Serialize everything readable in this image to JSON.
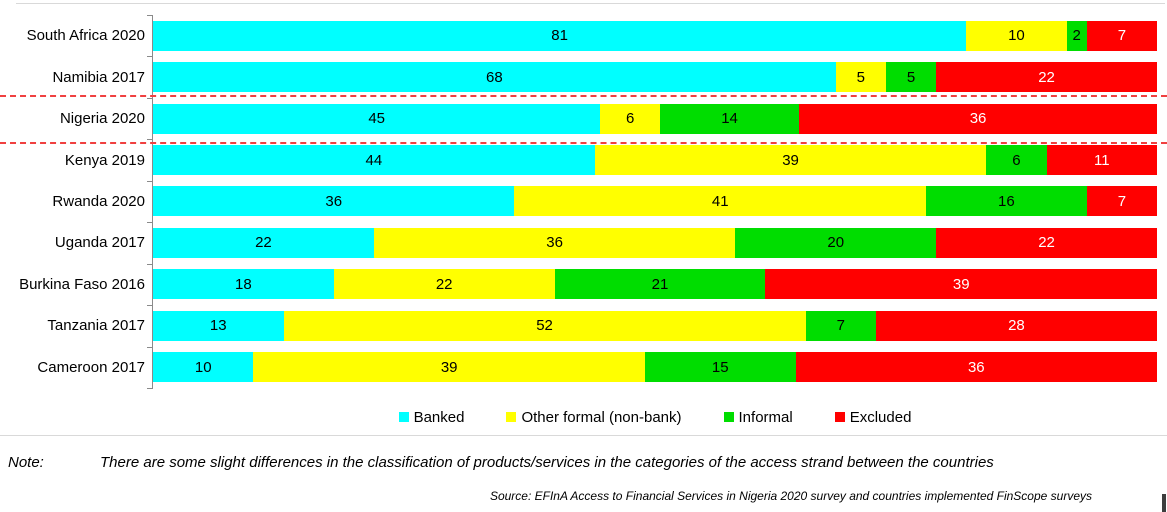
{
  "chart_data": {
    "type": "bar",
    "variant": "horizontal-stacked-percent",
    "title": "",
    "xlabel": "",
    "ylabel": "",
    "xlim": [
      0,
      100
    ],
    "grid": false,
    "legend_position": "bottom",
    "categories": [
      "South Africa 2020",
      "Namibia 2017",
      "Nigeria 2020",
      "Kenya 2019",
      "Rwanda 2020",
      "Uganda 2017",
      "Burkina Faso 2016",
      "Tanzania 2017",
      "Cameroon 2017"
    ],
    "series": [
      {
        "name": "Banked",
        "color": "#00FFFF",
        "label_color": "#000000",
        "values": [
          81,
          68,
          45,
          44,
          36,
          22,
          18,
          13,
          10
        ]
      },
      {
        "name": "Other formal (non-bank)",
        "color": "#FFFF00",
        "label_color": "#000000",
        "values": [
          10,
          5,
          6,
          39,
          41,
          36,
          22,
          52,
          39
        ]
      },
      {
        "name": "Informal",
        "color": "#00DD00",
        "label_color": "#000000",
        "values": [
          2,
          5,
          14,
          6,
          16,
          20,
          21,
          7,
          15
        ]
      },
      {
        "name": "Excluded",
        "color": "#FF0000",
        "label_color": "#FFFFFF",
        "values": [
          7,
          22,
          36,
          11,
          7,
          22,
          39,
          28,
          36
        ]
      }
    ],
    "separators": {
      "style": "red dashed horizontal lines isolating the Nigeria 2020 row",
      "color": "#F04040",
      "between": [
        [
          "Namibia 2017",
          "Nigeria 2020"
        ],
        [
          "Nigeria 2020",
          "Kenya 2019"
        ]
      ]
    }
  },
  "legend": {
    "items": [
      {
        "label": "Banked",
        "color": "#00FFFF"
      },
      {
        "label": "Other formal (non-bank)",
        "color": "#FFFF00"
      },
      {
        "label": "Informal",
        "color": "#00DD00"
      },
      {
        "label": "Excluded",
        "color": "#FF0000"
      }
    ]
  },
  "note": {
    "label": "Note:",
    "text": "There are some slight differences in the classification of products/services in the categories of the access strand between the countries"
  },
  "source": {
    "text": "Source: EFInA Access to Financial Services in Nigeria 2020 survey and countries implemented FinScope surveys"
  },
  "colors": {
    "axis": "#8A8A8A",
    "frame_line": "#D9D9D9",
    "separator": "#F04040"
  }
}
